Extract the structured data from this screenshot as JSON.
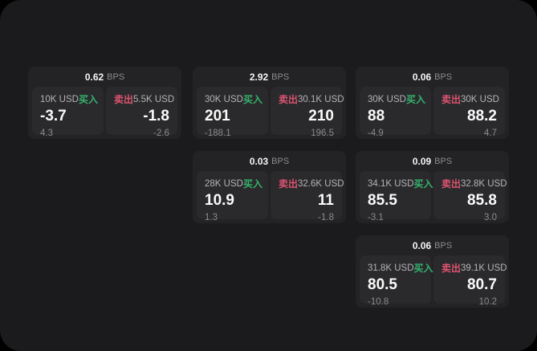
{
  "labels": {
    "bps_suffix": "BPS",
    "buy": "买入",
    "sell": "卖出"
  },
  "colors": {
    "page_bg": "#000000",
    "surface_bg": "#1b1b1d",
    "card_bg": "#232325",
    "panel_bg": "#2a2a2c",
    "text_primary": "#fafafa",
    "text_secondary": "#b4b4b9",
    "text_muted": "#8b8b90",
    "buy_green": "#35b26b",
    "sell_red": "#dd5470"
  },
  "cards": [
    {
      "bps": "0.62",
      "buy": {
        "size": "10K USD",
        "value": "-3.7",
        "sub": "4.3"
      },
      "sell": {
        "size": "5.5K USD",
        "value": "-1.8",
        "sub": "-2.6"
      }
    },
    {
      "bps": "2.92",
      "buy": {
        "size": "30K USD",
        "value": "201",
        "sub": "-188.1"
      },
      "sell": {
        "size": "30.1K USD",
        "value": "210",
        "sub": "196.5"
      }
    },
    {
      "bps": "0.06",
      "buy": {
        "size": "30K USD",
        "value": "88",
        "sub": "-4.9"
      },
      "sell": {
        "size": "30K USD",
        "value": "88.2",
        "sub": "4.7"
      }
    },
    {
      "bps": "0.03",
      "buy": {
        "size": "28K USD",
        "value": "10.9",
        "sub": "1.3"
      },
      "sell": {
        "size": "32.6K USD",
        "value": "11",
        "sub": "-1.8"
      }
    },
    {
      "bps": "0.09",
      "buy": {
        "size": "34.1K USD",
        "value": "85.5",
        "sub": "-3.1"
      },
      "sell": {
        "size": "32.8K USD",
        "value": "85.8",
        "sub": "3.0"
      }
    },
    {
      "bps": "0.06",
      "buy": {
        "size": "31.8K USD",
        "value": "80.5",
        "sub": "-10.8"
      },
      "sell": {
        "size": "39.1K USD",
        "value": "80.7",
        "sub": "10.2"
      }
    }
  ]
}
